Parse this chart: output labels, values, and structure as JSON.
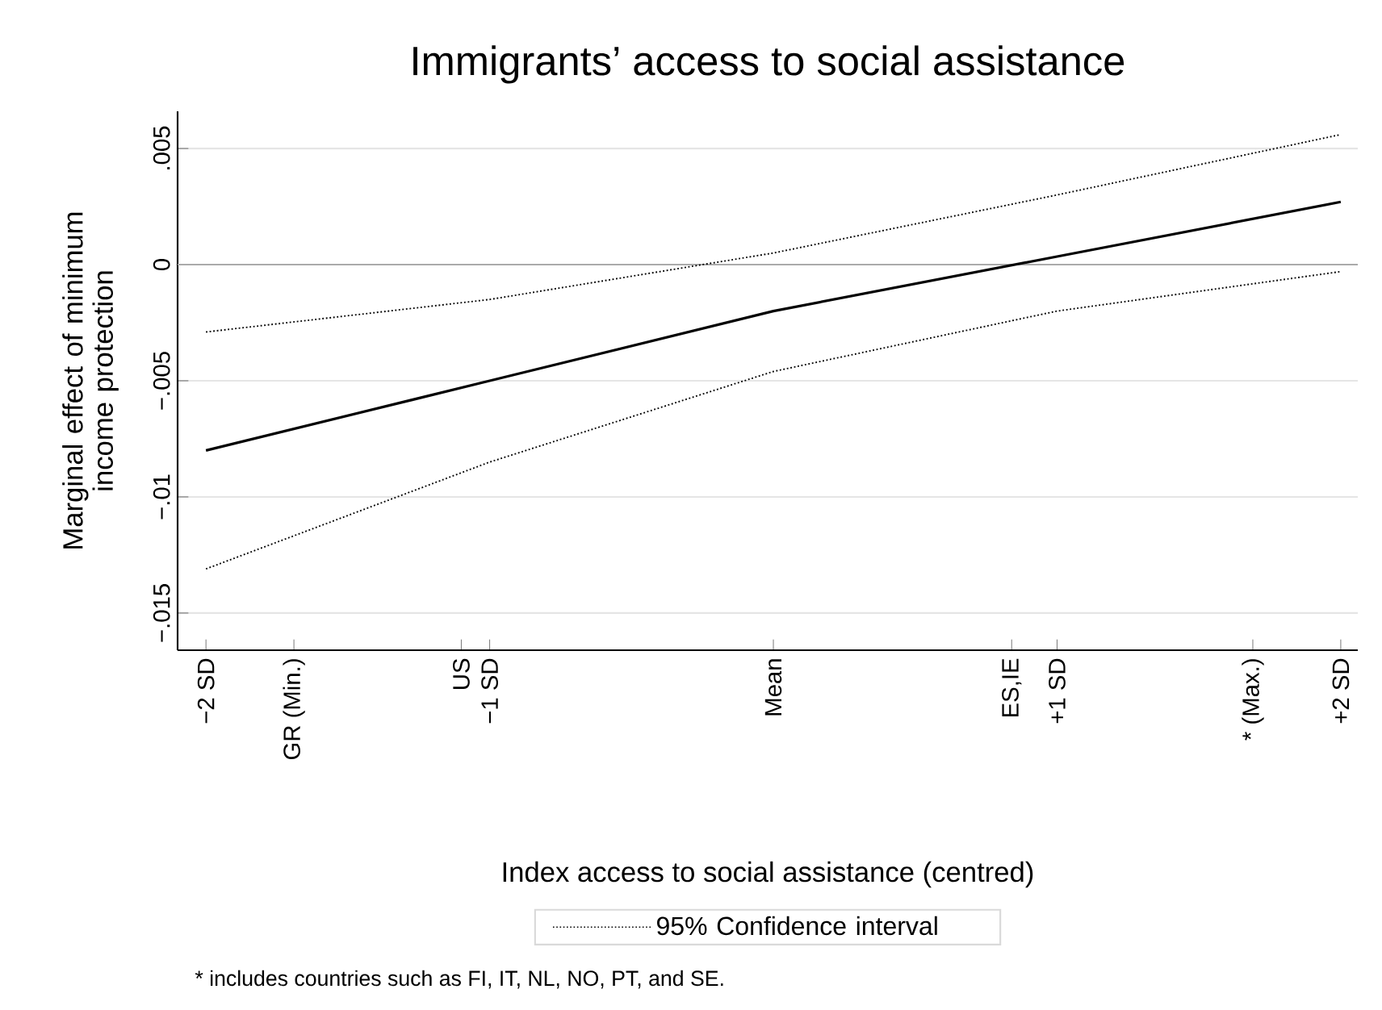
{
  "chart_data": {
    "type": "line",
    "title": "Immigrants’ access to social assistance",
    "xlabel": "Index access to social assistance (centred)",
    "ylabel": "Marginal effect of minimum income protection",
    "x": [
      -2,
      -1,
      0,
      1,
      2
    ],
    "series": [
      {
        "color": "#000000",
        "line_style": "solid",
        "values": [
          -0.008,
          -0.005,
          -0.002,
          0.00035,
          0.0027
        ]
      },
      {
        "name": "95% Confidence interval",
        "color": "#000000",
        "line_style": "dotted",
        "values": [
          -0.0029,
          -0.0015,
          0.0005,
          0.003,
          0.0056
        ]
      },
      {
        "color": "#000000",
        "line_style": "dotted",
        "values": [
          -0.0131,
          -0.0085,
          -0.0046,
          -0.002,
          -0.0003
        ]
      }
    ],
    "xlim": [
      -2.1,
      2.06
    ],
    "xticks": [
      {
        "value": -2,
        "label": "−2 SD"
      },
      {
        "value": -1.69,
        "label": "GR (Min.)"
      },
      {
        "value": -1.1,
        "label": "US"
      },
      {
        "value": -1,
        "label": "−1 SD"
      },
      {
        "value": 0,
        "label": "Mean"
      },
      {
        "value": 0.84,
        "label": "ES,IE"
      },
      {
        "value": 1,
        "label": "+1 SD"
      },
      {
        "value": 1.69,
        "label": "* (Max.)"
      },
      {
        "value": 2,
        "label": "+2 SD"
      }
    ],
    "ylim": [
      -0.0166,
      0.0066
    ],
    "yticks": [
      {
        "value": 0.005,
        "label": ".005"
      },
      {
        "value": 0,
        "label": "0"
      },
      {
        "value": -0.005,
        "label": "−.005"
      },
      {
        "value": -0.01,
        "label": "−.01"
      },
      {
        "value": -0.015,
        "label": "−.015"
      }
    ],
    "ref_lines": [
      {
        "axis": "y",
        "value": 0,
        "color": "#aaaaaa"
      }
    ],
    "grid": "y",
    "legend": "bottom",
    "marker": "none",
    "annotations": [
      "* includes countries such as FI, IT, NL, NO, PT, and SE."
    ]
  }
}
